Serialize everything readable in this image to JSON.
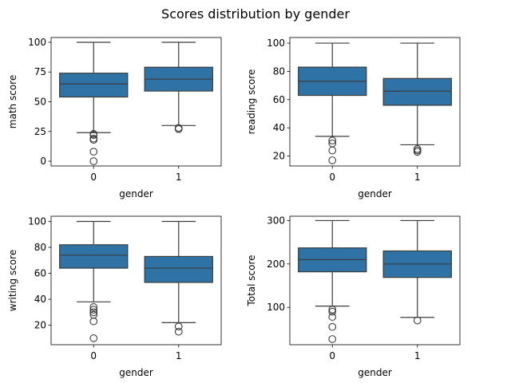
{
  "figure": {
    "title": "Scores distribution by gender"
  },
  "chart_data": [
    {
      "type": "box",
      "xlabel": "gender",
      "ylabel": "math score",
      "categories": [
        "0",
        "1"
      ],
      "ylim": [
        -4,
        104
      ],
      "yticks": [
        0,
        25,
        50,
        75,
        100
      ],
      "boxes": [
        {
          "category": "0",
          "whisker_low": 24,
          "q1": 54,
          "median": 65,
          "q3": 74,
          "whisker_high": 100,
          "outliers": [
            23,
            22,
            19,
            18,
            8,
            0
          ]
        },
        {
          "category": "1",
          "whisker_low": 30,
          "q1": 59,
          "median": 69,
          "q3": 79,
          "whisker_high": 100,
          "outliers": [
            28,
            27
          ]
        }
      ],
      "color": "#2f73a6"
    },
    {
      "type": "box",
      "xlabel": "gender",
      "ylabel": "reading score",
      "categories": [
        "0",
        "1"
      ],
      "ylim": [
        13,
        104
      ],
      "yticks": [
        20,
        40,
        60,
        80,
        100
      ],
      "boxes": [
        {
          "category": "0",
          "whisker_low": 34,
          "q1": 63,
          "median": 73,
          "q3": 83,
          "whisker_high": 100,
          "outliers": [
            31,
            29,
            24,
            17
          ]
        },
        {
          "category": "1",
          "whisker_low": 28,
          "q1": 56,
          "median": 66,
          "q3": 75,
          "whisker_high": 100,
          "outliers": [
            25,
            24,
            23
          ]
        }
      ],
      "color": "#2f73a6"
    },
    {
      "type": "box",
      "xlabel": "gender",
      "ylabel": "writing score",
      "categories": [
        "0",
        "1"
      ],
      "ylim": [
        5,
        104
      ],
      "yticks": [
        20,
        40,
        60,
        80,
        100
      ],
      "boxes": [
        {
          "category": "0",
          "whisker_low": 38,
          "q1": 64,
          "median": 74,
          "q3": 82,
          "whisker_high": 100,
          "outliers": [
            34,
            32,
            30,
            28,
            23,
            10
          ]
        },
        {
          "category": "1",
          "whisker_low": 22,
          "q1": 53,
          "median": 64,
          "q3": 73,
          "whisker_high": 100,
          "outliers": [
            19,
            15
          ]
        }
      ],
      "color": "#2f73a6"
    },
    {
      "type": "box",
      "xlabel": "gender",
      "ylabel": "Total score",
      "categories": [
        "0",
        "1"
      ],
      "ylim": [
        14,
        310
      ],
      "yticks": [
        100,
        200,
        300
      ],
      "boxes": [
        {
          "category": "0",
          "whisker_low": 103,
          "q1": 182,
          "median": 210,
          "q3": 237,
          "whisker_high": 300,
          "outliers": [
            95,
            90,
            78,
            55,
            27
          ]
        },
        {
          "category": "1",
          "whisker_low": 77,
          "q1": 169,
          "median": 200,
          "q3": 230,
          "whisker_high": 300,
          "outliers": [
            70
          ]
        }
      ],
      "color": "#2f73a6"
    }
  ]
}
